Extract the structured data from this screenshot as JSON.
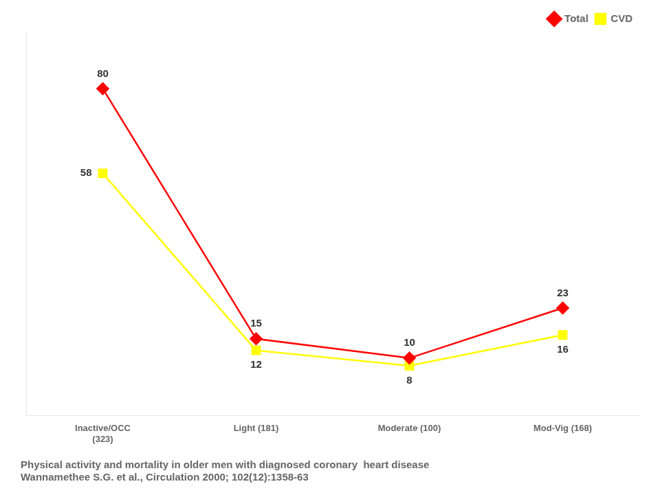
{
  "chart_data": {
    "type": "line",
    "subtitle": [
      "Physical activity and mortality in older men with diagnosed coronary  heart disease",
      "Wannamethee S.G. et al., Circulation 2000; 102(12):1358-63"
    ],
    "categories": [
      "Inactive/OCC\n(323)",
      "Light (181)",
      "Moderate (100)",
      "Mod-Vig (168)"
    ],
    "series": [
      {
        "name": "Total",
        "color": "#FF0000",
        "marker": "diamond",
        "values": [
          80,
          15,
          10,
          23
        ]
      },
      {
        "name": "CVD",
        "color": "#FFFF00",
        "marker": "square",
        "values": [
          58,
          12,
          8,
          16
        ]
      }
    ],
    "ylim": [
      -5,
      95
    ],
    "tick_labels": "x",
    "grid": false,
    "legend": "upper right",
    "data_labels": true
  }
}
